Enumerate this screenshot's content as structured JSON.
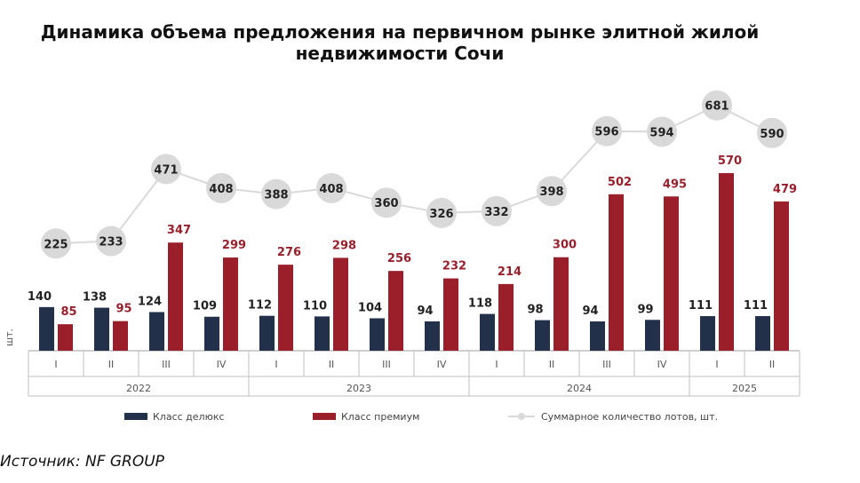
{
  "title_line1": "Динамика объема предложения на первичном рынке элитной жилой",
  "title_line2": "недвижимости Сочи",
  "source": "Источник: NF GROUP",
  "colors": {
    "deluxe": "#22304a",
    "premium": "#9a1f2b",
    "total_line": "#d9d9d9",
    "total_marker": "#d9d9d9",
    "axis": "#bfbfbf"
  },
  "chart_data": {
    "type": "bar",
    "ylabel": "шт.",
    "categories": [
      "I",
      "II",
      "III",
      "IV",
      "I",
      "II",
      "III",
      "IV",
      "I",
      "II",
      "III",
      "IV",
      "I",
      "II"
    ],
    "years": [
      {
        "label": "2022",
        "count": 4
      },
      {
        "label": "2023",
        "count": 4
      },
      {
        "label": "2024",
        "count": 4
      },
      {
        "label": "2025",
        "count": 2
      }
    ],
    "series": [
      {
        "name": "Класс делюкс",
        "kind": "bar",
        "values": [
          140,
          138,
          124,
          109,
          112,
          110,
          104,
          94,
          118,
          98,
          94,
          99,
          111,
          111
        ]
      },
      {
        "name": "Класс премиум",
        "kind": "bar",
        "values": [
          85,
          95,
          347,
          299,
          276,
          298,
          256,
          232,
          214,
          300,
          502,
          495,
          570,
          479
        ]
      },
      {
        "name": "Суммарное количество лотов, шт.",
        "kind": "line",
        "values": [
          225,
          233,
          471,
          408,
          388,
          408,
          360,
          326,
          332,
          398,
          596,
          594,
          681,
          590
        ]
      }
    ],
    "legend_position": "bottom",
    "grid": false
  }
}
